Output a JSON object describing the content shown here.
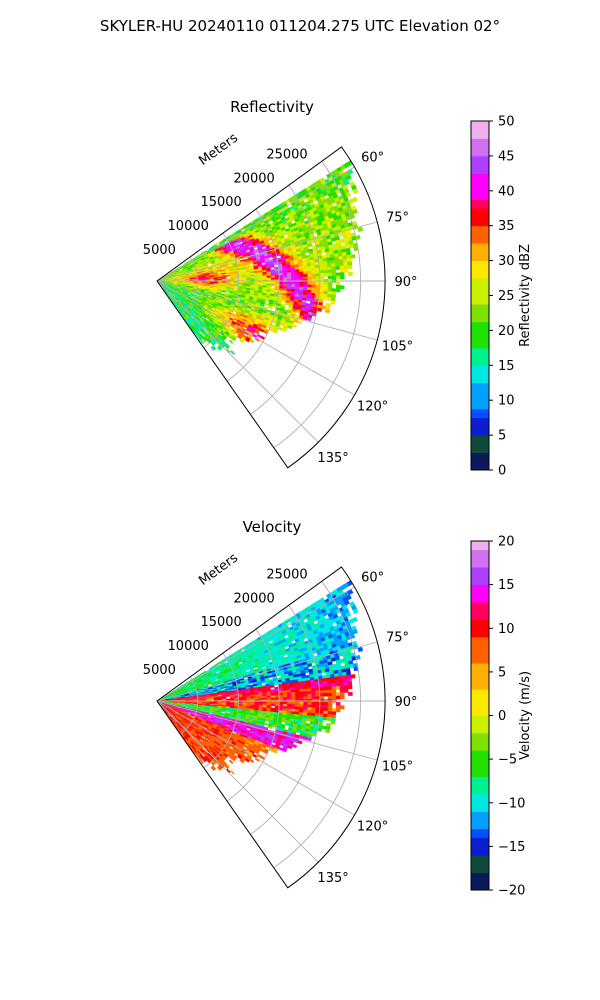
{
  "figure": {
    "suptitle": "SKYLER-HU  20240110  011204.275 UTC Elevation 02°"
  },
  "chart_data": [
    {
      "type": "heatmap",
      "projection": "polar-sector",
      "title": "Reflectivity",
      "range_label": "Meters",
      "range_ticks": [
        5000,
        10000,
        15000,
        20000,
        25000
      ],
      "range_tick_labels": [
        "5000",
        "10000",
        "15000",
        "20000",
        "25000"
      ],
      "range_max": 28000,
      "azimuth_ticks": [
        60,
        75,
        90,
        105,
        120,
        135
      ],
      "azimuth_tick_labels": [
        "60°",
        "75°",
        "90°",
        "105°",
        "120°",
        "135°"
      ],
      "azimuth_range": [
        54,
        145
      ],
      "grid": true,
      "colorbar": {
        "label": "Reflectivity dBZ",
        "min": 0,
        "max": 50,
        "ticks": [
          0,
          5,
          10,
          15,
          20,
          25,
          30,
          35,
          40,
          45,
          50
        ],
        "tick_labels": [
          "0",
          "5",
          "10",
          "15",
          "20",
          "25",
          "30",
          "35",
          "40",
          "45",
          "50"
        ],
        "stops": [
          {
            "value": 0,
            "color": "#0a1a5a"
          },
          {
            "value": 3,
            "color": "#0f4a3a"
          },
          {
            "value": 5,
            "color": "#0b1fd0"
          },
          {
            "value": 7,
            "color": "#0050ff"
          },
          {
            "value": 9,
            "color": "#00a0ff"
          },
          {
            "value": 12,
            "color": "#00e8e0"
          },
          {
            "value": 15,
            "color": "#00f090"
          },
          {
            "value": 18,
            "color": "#20e000"
          },
          {
            "value": 21,
            "color": "#80e000"
          },
          {
            "value": 24,
            "color": "#c8f000"
          },
          {
            "value": 27,
            "color": "#ffe800"
          },
          {
            "value": 30,
            "color": "#ffb000"
          },
          {
            "value": 33,
            "color": "#ff6000"
          },
          {
            "value": 35,
            "color": "#ff0000"
          },
          {
            "value": 37,
            "color": "#ff0060"
          },
          {
            "value": 39,
            "color": "#ff00ff"
          },
          {
            "value": 42,
            "color": "#b040ff"
          },
          {
            "value": 45,
            "color": "#d070f0"
          },
          {
            "value": 48,
            "color": "#f0b0f0"
          },
          {
            "value": 50,
            "color": "#ffe8ff"
          }
        ]
      }
    },
    {
      "type": "heatmap",
      "projection": "polar-sector",
      "title": "Velocity",
      "range_label": "Meters",
      "range_ticks": [
        5000,
        10000,
        15000,
        20000,
        25000
      ],
      "range_tick_labels": [
        "5000",
        "10000",
        "15000",
        "20000",
        "25000"
      ],
      "range_max": 28000,
      "azimuth_ticks": [
        60,
        75,
        90,
        105,
        120,
        135
      ],
      "azimuth_tick_labels": [
        "60°",
        "75°",
        "90°",
        "105°",
        "120°",
        "135°"
      ],
      "azimuth_range": [
        54,
        145
      ],
      "grid": true,
      "colorbar": {
        "label": "Velocity (m/s)",
        "min": -20,
        "max": 20,
        "ticks": [
          -20,
          -15,
          -10,
          -5,
          0,
          5,
          10,
          15,
          20
        ],
        "tick_labels": [
          "−20",
          "−15",
          "−10",
          "−5",
          "0",
          "5",
          "10",
          "15",
          "20"
        ],
        "stops": [
          {
            "value": -20,
            "color": "#0a1a5a"
          },
          {
            "value": -18,
            "color": "#0f4a3a"
          },
          {
            "value": -16,
            "color": "#0b1fd0"
          },
          {
            "value": -14,
            "color": "#0050ff"
          },
          {
            "value": -12.5,
            "color": "#00a0ff"
          },
          {
            "value": -11,
            "color": "#00e8e0"
          },
          {
            "value": -9,
            "color": "#00f090"
          },
          {
            "value": -7,
            "color": "#20e000"
          },
          {
            "value": -4,
            "color": "#80e000"
          },
          {
            "value": -2,
            "color": "#c8f000"
          },
          {
            "value": 0,
            "color": "#ffe800"
          },
          {
            "value": 3,
            "color": "#ffb000"
          },
          {
            "value": 6,
            "color": "#ff6000"
          },
          {
            "value": 9,
            "color": "#ff0000"
          },
          {
            "value": 11,
            "color": "#ff0060"
          },
          {
            "value": 13,
            "color": "#ff00ff"
          },
          {
            "value": 15,
            "color": "#b040ff"
          },
          {
            "value": 17,
            "color": "#d070f0"
          },
          {
            "value": 19,
            "color": "#f0b0f0"
          },
          {
            "value": 20,
            "color": "#ffe8ff"
          }
        ]
      }
    }
  ]
}
